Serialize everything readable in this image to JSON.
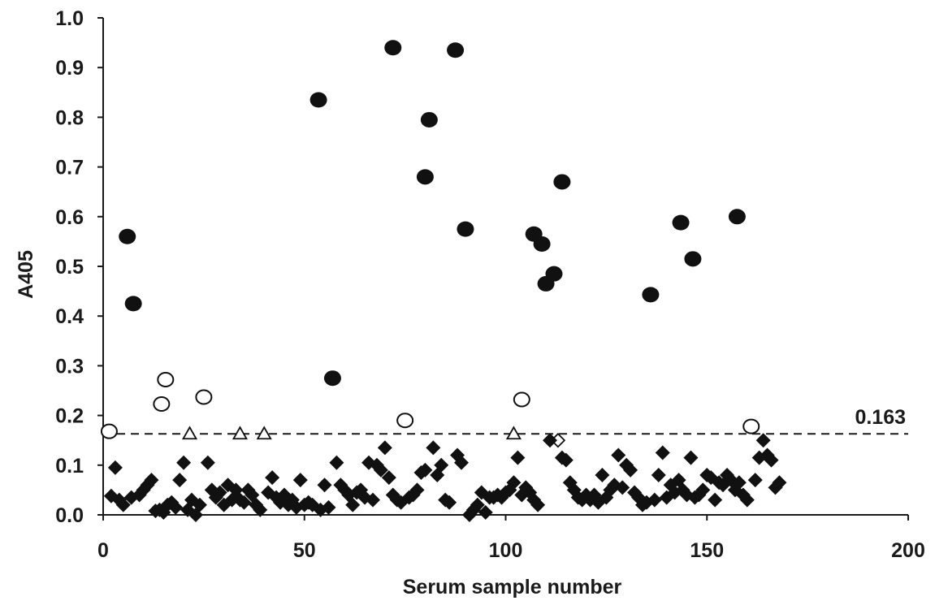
{
  "chart_data": {
    "type": "scatter",
    "title": "",
    "xlabel": "Serum sample number",
    "ylabel": "A405",
    "xlim": [
      0,
      200
    ],
    "ylim": [
      0,
      1.0
    ],
    "x_ticks": [
      "0",
      "50",
      "100",
      "150",
      "200"
    ],
    "y_ticks": [
      "0.0",
      "0.1",
      "0.2",
      "0.3",
      "0.4",
      "0.5",
      "0.6",
      "0.7",
      "0.8",
      "0.9",
      "1.0"
    ],
    "grid": false,
    "legend": "none",
    "threshold": {
      "value": 0.163,
      "label": "0.163"
    },
    "series": [
      {
        "marker": "filled-circle",
        "points": [
          [
            6,
            0.56
          ],
          [
            7.5,
            0.425
          ],
          [
            53.5,
            0.835
          ],
          [
            57,
            0.275
          ],
          [
            72,
            0.94
          ],
          [
            80,
            0.68
          ],
          [
            81,
            0.795
          ],
          [
            87.5,
            0.935
          ],
          [
            90,
            0.575
          ],
          [
            107,
            0.565
          ],
          [
            109,
            0.545
          ],
          [
            110,
            0.465
          ],
          [
            112,
            0.485
          ],
          [
            114,
            0.67
          ],
          [
            136,
            0.443
          ],
          [
            143.5,
            0.588
          ],
          [
            146.5,
            0.515
          ],
          [
            157.5,
            0.6
          ]
        ]
      },
      {
        "marker": "open-circle",
        "points": [
          [
            1.5,
            0.168
          ],
          [
            14.5,
            0.223
          ],
          [
            15.5,
            0.272
          ],
          [
            25,
            0.237
          ],
          [
            75,
            0.19
          ],
          [
            104,
            0.232
          ],
          [
            161,
            0.178
          ]
        ]
      },
      {
        "marker": "open-triangle",
        "points": [
          [
            21.5,
            0.163
          ],
          [
            34,
            0.163
          ],
          [
            40,
            0.163
          ],
          [
            102,
            0.163
          ]
        ]
      },
      {
        "marker": "open-diamond",
        "points": [
          [
            113,
            0.15
          ]
        ]
      },
      {
        "marker": "filled-diamond",
        "points": [
          [
            2,
            0.038
          ],
          [
            3,
            0.095
          ],
          [
            4,
            0.03
          ],
          [
            5,
            0.02
          ],
          [
            7,
            0.035
          ],
          [
            9,
            0.04
          ],
          [
            10,
            0.05
          ],
          [
            11,
            0.06
          ],
          [
            12,
            0.07
          ],
          [
            13,
            0.008
          ],
          [
            14,
            0.01
          ],
          [
            15,
            0.005
          ],
          [
            16,
            0.02
          ],
          [
            17,
            0.025
          ],
          [
            18,
            0.015
          ],
          [
            19,
            0.07
          ],
          [
            20,
            0.105
          ],
          [
            21,
            0.01
          ],
          [
            22,
            0.03
          ],
          [
            23,
            0.0
          ],
          [
            24,
            0.02
          ],
          [
            26,
            0.105
          ],
          [
            27,
            0.05
          ],
          [
            28,
            0.035
          ],
          [
            29,
            0.045
          ],
          [
            30,
            0.02
          ],
          [
            31,
            0.06
          ],
          [
            32,
            0.03
          ],
          [
            33,
            0.05
          ],
          [
            34,
            0.03
          ],
          [
            35,
            0.025
          ],
          [
            36,
            0.05
          ],
          [
            37,
            0.04
          ],
          [
            38,
            0.02
          ],
          [
            39,
            0.01
          ],
          [
            41,
            0.045
          ],
          [
            42,
            0.075
          ],
          [
            43,
            0.035
          ],
          [
            44,
            0.025
          ],
          [
            45,
            0.04
          ],
          [
            46,
            0.02
          ],
          [
            47,
            0.03
          ],
          [
            48,
            0.015
          ],
          [
            49,
            0.07
          ],
          [
            50,
            0.02
          ],
          [
            51,
            0.025
          ],
          [
            52,
            0.02
          ],
          [
            54,
            0.01
          ],
          [
            55,
            0.06
          ],
          [
            56,
            0.015
          ],
          [
            58,
            0.105
          ],
          [
            59,
            0.06
          ],
          [
            60,
            0.05
          ],
          [
            61,
            0.04
          ],
          [
            62,
            0.02
          ],
          [
            63,
            0.045
          ],
          [
            64,
            0.05
          ],
          [
            65,
            0.035
          ],
          [
            66,
            0.105
          ],
          [
            67,
            0.03
          ],
          [
            68,
            0.1
          ],
          [
            69,
            0.09
          ],
          [
            70,
            0.135
          ],
          [
            71,
            0.075
          ],
          [
            72,
            0.04
          ],
          [
            73,
            0.03
          ],
          [
            74,
            0.025
          ],
          [
            76,
            0.035
          ],
          [
            77,
            0.04
          ],
          [
            78,
            0.05
          ],
          [
            79,
            0.085
          ],
          [
            80,
            0.09
          ],
          [
            82,
            0.135
          ],
          [
            83,
            0.08
          ],
          [
            84,
            0.1
          ],
          [
            85,
            0.03
          ],
          [
            86,
            0.025
          ],
          [
            88,
            0.12
          ],
          [
            89,
            0.105
          ],
          [
            91,
            0.0
          ],
          [
            92,
            0.01
          ],
          [
            93,
            0.02
          ],
          [
            94,
            0.045
          ],
          [
            95,
            0.005
          ],
          [
            96,
            0.035
          ],
          [
            97,
            0.035
          ],
          [
            98,
            0.04
          ],
          [
            99,
            0.035
          ],
          [
            100,
            0.045
          ],
          [
            101,
            0.05
          ],
          [
            102,
            0.065
          ],
          [
            103,
            0.115
          ],
          [
            104,
            0.04
          ],
          [
            105,
            0.055
          ],
          [
            106,
            0.045
          ],
          [
            107,
            0.03
          ],
          [
            108,
            0.02
          ],
          [
            111,
            0.15
          ],
          [
            114,
            0.115
          ],
          [
            115,
            0.11
          ],
          [
            116,
            0.065
          ],
          [
            117,
            0.05
          ],
          [
            118,
            0.035
          ],
          [
            119,
            0.03
          ],
          [
            120,
            0.04
          ],
          [
            121,
            0.03
          ],
          [
            122,
            0.04
          ],
          [
            123,
            0.025
          ],
          [
            124,
            0.08
          ],
          [
            125,
            0.035
          ],
          [
            126,
            0.05
          ],
          [
            127,
            0.06
          ],
          [
            128,
            0.12
          ],
          [
            129,
            0.055
          ],
          [
            130,
            0.1
          ],
          [
            131,
            0.09
          ],
          [
            132,
            0.045
          ],
          [
            133,
            0.035
          ],
          [
            134,
            0.02
          ],
          [
            135,
            0.025
          ],
          [
            137,
            0.03
          ],
          [
            138,
            0.08
          ],
          [
            139,
            0.125
          ],
          [
            140,
            0.035
          ],
          [
            141,
            0.06
          ],
          [
            142,
            0.045
          ],
          [
            143,
            0.07
          ],
          [
            144,
            0.05
          ],
          [
            145,
            0.04
          ],
          [
            146,
            0.115
          ],
          [
            147,
            0.035
          ],
          [
            148,
            0.04
          ],
          [
            149,
            0.05
          ],
          [
            150,
            0.08
          ],
          [
            151,
            0.075
          ],
          [
            152,
            0.03
          ],
          [
            153,
            0.065
          ],
          [
            154,
            0.06
          ],
          [
            155,
            0.08
          ],
          [
            156,
            0.07
          ],
          [
            157,
            0.05
          ],
          [
            158,
            0.065
          ],
          [
            159,
            0.04
          ],
          [
            160,
            0.03
          ],
          [
            162,
            0.07
          ],
          [
            163,
            0.115
          ],
          [
            164,
            0.15
          ],
          [
            165,
            0.12
          ],
          [
            166,
            0.11
          ],
          [
            167,
            0.055
          ],
          [
            168,
            0.065
          ]
        ]
      }
    ]
  },
  "colors": {
    "marker": "#111111",
    "axis": "#1a1a1a",
    "open_fill": "#ffffff"
  }
}
